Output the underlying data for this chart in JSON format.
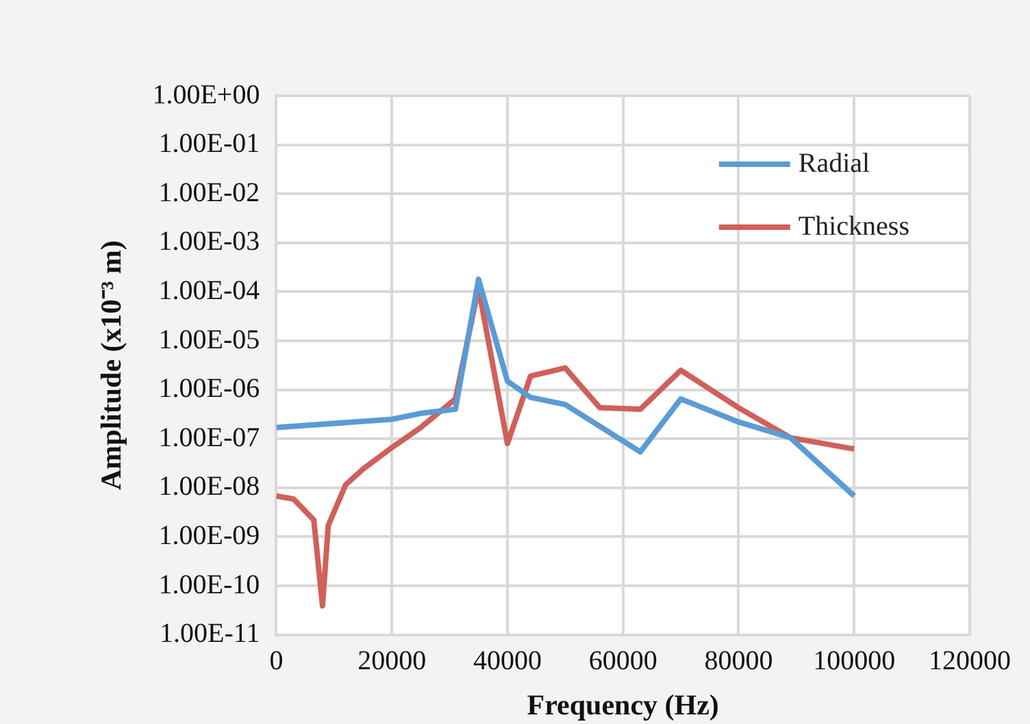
{
  "chart_data": {
    "type": "line",
    "xlabel": "Frequency (Hz)",
    "ylabel": "Amplitude (x10⁻³ m)",
    "log": "y",
    "grid": true,
    "legend": "top right",
    "marker": "none",
    "line_style": "solid",
    "xlim": [
      0,
      120000
    ],
    "xticks": [
      0,
      20000,
      40000,
      60000,
      80000,
      100000,
      120000
    ],
    "ylim": [
      1e-11,
      1
    ],
    "yticks": [
      {
        "value": 1e-11,
        "label": "1.00E-11"
      },
      {
        "value": 1e-10,
        "label": "1.00E-10"
      },
      {
        "value": 1e-09,
        "label": "1.00E-09"
      },
      {
        "value": 1e-08,
        "label": "1.00E-08"
      },
      {
        "value": 1e-07,
        "label": "1.00E-07"
      },
      {
        "value": 1e-06,
        "label": "1.00E-06"
      },
      {
        "value": 1e-05,
        "label": "1.00E-05"
      },
      {
        "value": 0.0001,
        "label": "1.00E-04"
      },
      {
        "value": 0.001,
        "label": "1.00E-03"
      },
      {
        "value": 0.01,
        "label": "1.00E-02"
      },
      {
        "value": 0.1,
        "label": "1.00E-01"
      },
      {
        "value": 1,
        "label": "1.00E+00"
      }
    ],
    "series": [
      {
        "name": "Radial",
        "color": "#5b9bd5",
        "x": [
          0,
          20000,
          25000,
          31000,
          35000,
          40000,
          44000,
          50000,
          63000,
          70000,
          80000,
          89000,
          100000
        ],
        "values": [
          1.7e-07,
          2.5e-07,
          3.3e-07,
          4e-07,
          0.00018,
          1.5e-06,
          7e-07,
          5e-07,
          5.4e-08,
          6.5e-07,
          2.2e-07,
          1.05e-07,
          6.8e-09
        ]
      },
      {
        "name": "Thickness",
        "color": "#d0605a",
        "x": [
          0,
          3000,
          6500,
          8000,
          9000,
          12000,
          15000,
          20000,
          25000,
          31000,
          35000,
          40000,
          44000,
          50000,
          56000,
          63000,
          70000,
          80000,
          89000,
          100000
        ],
        "values": [
          6.8e-09,
          5.9e-09,
          2.2e-09,
          3.9e-11,
          1.7e-09,
          1.15e-08,
          2.4e-08,
          6.6e-08,
          1.7e-07,
          6.5e-07,
          0.00012,
          8e-08,
          1.9e-06,
          2.8e-06,
          4.3e-07,
          4e-07,
          2.5e-06,
          4.3e-07,
          1.05e-07,
          6.2e-08
        ]
      }
    ]
  }
}
